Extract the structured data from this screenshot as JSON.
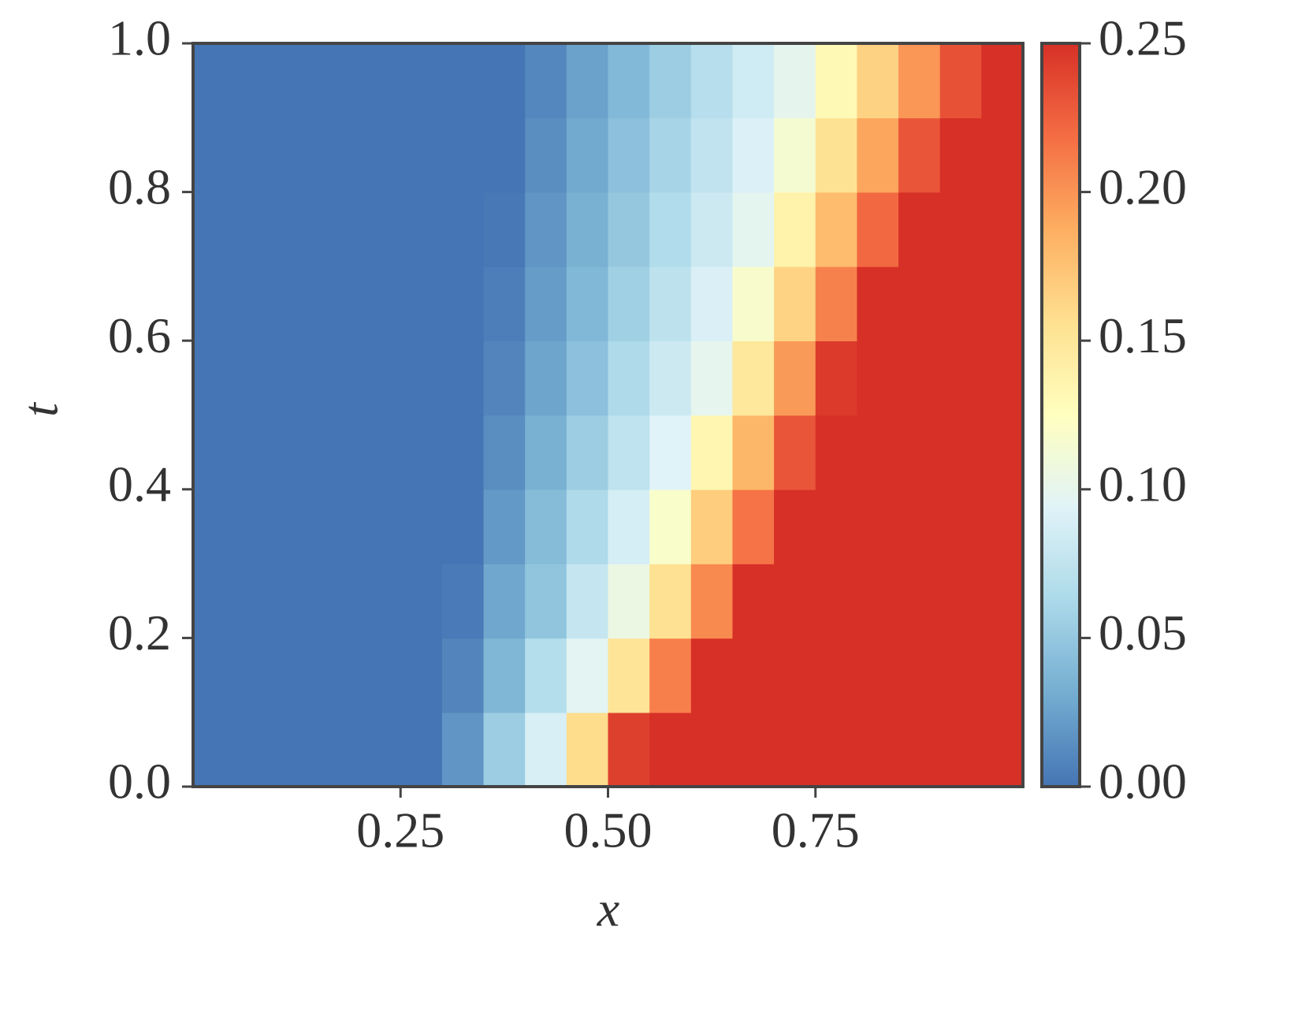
{
  "chart_data": {
    "type": "heatmap",
    "xlabel": "x",
    "ylabel": "t",
    "x": [
      0.025,
      0.075,
      0.125,
      0.175,
      0.225,
      0.275,
      0.325,
      0.375,
      0.425,
      0.475,
      0.525,
      0.575,
      0.625,
      0.675,
      0.725,
      0.775,
      0.825,
      0.875,
      0.925,
      0.975
    ],
    "y": [
      0.05,
      0.15,
      0.25,
      0.35,
      0.45,
      0.55,
      0.65,
      0.75,
      0.85,
      0.95
    ],
    "z": [
      [
        0,
        0,
        0,
        0,
        0,
        0,
        0.018,
        0.054,
        0.089,
        0.158,
        0.242,
        0.25,
        0.25,
        0.25,
        0.25,
        0.25,
        0.25,
        0.25,
        0.25,
        0.25
      ],
      [
        0,
        0,
        0,
        0,
        0,
        0,
        0.009,
        0.038,
        0.068,
        0.097,
        0.152,
        0.21,
        0.25,
        0.25,
        0.25,
        0.25,
        0.25,
        0.25,
        0.25,
        0.25
      ],
      [
        0,
        0,
        0,
        0,
        0,
        0,
        0.003,
        0.028,
        0.048,
        0.078,
        0.105,
        0.155,
        0.205,
        0.25,
        0.25,
        0.25,
        0.25,
        0.25,
        0.25,
        0.25
      ],
      [
        0,
        0,
        0,
        0,
        0,
        0,
        0,
        0.02,
        0.042,
        0.064,
        0.087,
        0.119,
        0.168,
        0.216,
        0.25,
        0.25,
        0.25,
        0.25,
        0.25,
        0.25
      ],
      [
        0,
        0,
        0,
        0,
        0,
        0,
        0,
        0.014,
        0.034,
        0.054,
        0.074,
        0.094,
        0.134,
        0.182,
        0.231,
        0.25,
        0.25,
        0.25,
        0.25,
        0.25
      ],
      [
        0,
        0,
        0,
        0,
        0,
        0,
        0,
        0.009,
        0.027,
        0.045,
        0.064,
        0.082,
        0.1,
        0.148,
        0.197,
        0.245,
        0.25,
        0.25,
        0.25,
        0.25
      ],
      [
        0,
        0,
        0,
        0,
        0,
        0,
        0,
        0.005,
        0.022,
        0.039,
        0.056,
        0.073,
        0.09,
        0.118,
        0.164,
        0.209,
        0.25,
        0.25,
        0.25,
        0.25
      ],
      [
        0,
        0,
        0,
        0,
        0,
        0,
        0,
        0.002,
        0.018,
        0.034,
        0.05,
        0.066,
        0.082,
        0.098,
        0.138,
        0.179,
        0.221,
        0.25,
        0.25,
        0.25
      ],
      [
        0,
        0,
        0,
        0,
        0,
        0,
        0,
        0,
        0.014,
        0.029,
        0.045,
        0.06,
        0.075,
        0.091,
        0.115,
        0.154,
        0.192,
        0.231,
        0.25,
        0.25
      ],
      [
        0,
        0,
        0,
        0,
        0,
        0,
        0,
        0,
        0.01,
        0.025,
        0.04,
        0.054,
        0.069,
        0.084,
        0.099,
        0.131,
        0.165,
        0.199,
        0.233,
        0.25
      ]
    ],
    "xlim": [
      0,
      1
    ],
    "ylim": [
      0,
      1
    ],
    "xticks": [
      0.25,
      {
        "value": 0.5,
        "label": "0.50"
      },
      0.75
    ],
    "yticks": [
      {
        "value": 0,
        "label": "0.0"
      },
      {
        "value": 0.2,
        "label": "0.2"
      },
      {
        "value": 0.4,
        "label": "0.4"
      },
      {
        "value": 0.6,
        "label": "0.6"
      },
      {
        "value": 0.8,
        "label": "0.8"
      },
      {
        "value": 1,
        "label": "1.0"
      }
    ],
    "clim": [
      0,
      0.25
    ],
    "cticks": [
      {
        "value": 0,
        "label": "0.00"
      },
      {
        "value": 0.05,
        "label": "0.05"
      },
      {
        "value": 0.1,
        "label": "0.10"
      },
      {
        "value": 0.15,
        "label": "0.15"
      },
      {
        "value": 0.2,
        "label": "0.20"
      },
      0.25
    ],
    "colormap": [
      "#4575b4",
      "#74add1",
      "#abd9e9",
      "#e0f3f8",
      "#ffffbf",
      "#fee090",
      "#fdae61",
      "#f46d43",
      "#d73027"
    ]
  }
}
